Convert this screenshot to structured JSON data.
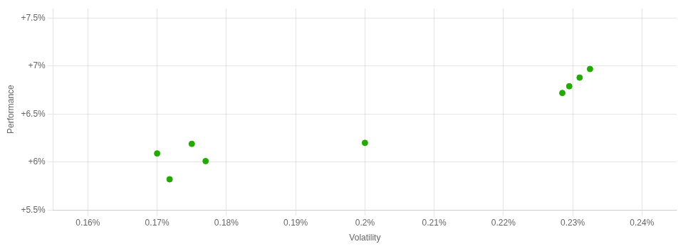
{
  "chart_data": {
    "type": "scatter",
    "xlabel": "Volatility",
    "ylabel": "Performance",
    "x": [
      0.17,
      0.1718,
      0.175,
      0.177,
      0.2,
      0.2285,
      0.2295,
      0.231,
      0.2325
    ],
    "values": [
      6.09,
      5.82,
      6.19,
      6.01,
      6.2,
      6.72,
      6.79,
      6.88,
      6.97
    ],
    "color": "#22aa00",
    "xlim": [
      0.155,
      0.245
    ],
    "ylim": [
      5.5,
      7.6
    ],
    "xticks": [
      {
        "value": 0.16,
        "label": "0.16%"
      },
      {
        "value": 0.17,
        "label": "0.17%"
      },
      {
        "value": 0.18,
        "label": "0.18%"
      },
      {
        "value": 0.19,
        "label": "0.19%"
      },
      {
        "value": 0.2,
        "label": "0.2%"
      },
      {
        "value": 0.21,
        "label": "0.21%"
      },
      {
        "value": 0.22,
        "label": "0.22%"
      },
      {
        "value": 0.23,
        "label": "0.23%"
      },
      {
        "value": 0.24,
        "label": "0.24%"
      }
    ],
    "yticks": [
      {
        "value": 5.5,
        "label": "+5.5%"
      },
      {
        "value": 6.0,
        "label": "+6%"
      },
      {
        "value": 6.5,
        "label": "+6.5%"
      },
      {
        "value": 7.0,
        "label": "+7%"
      },
      {
        "value": 7.5,
        "label": "+7.5%"
      }
    ],
    "grid": true
  }
}
